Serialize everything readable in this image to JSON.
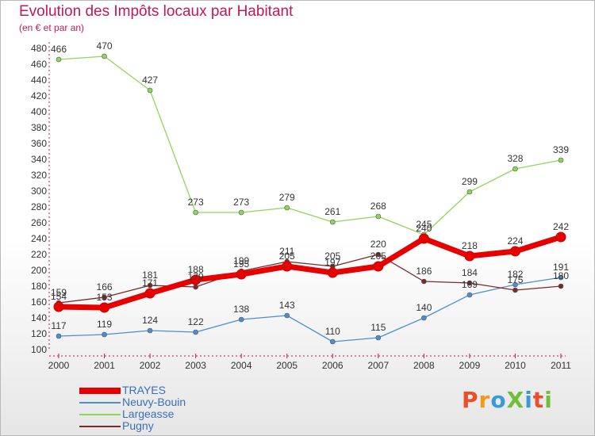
{
  "header": {
    "title": "Evolution des Impôts locaux par Habitant",
    "subtitle": "(en € et par an)"
  },
  "logo": {
    "text": "ProXiti",
    "letters": [
      {
        "ch": "P",
        "color": "#e8502a"
      },
      {
        "ch": "r",
        "color": "#f29a1d"
      },
      {
        "ch": "o",
        "color": "#3a9ad9"
      },
      {
        "ch": "X",
        "color": "#6fbf3b"
      },
      {
        "ch": "i",
        "color": "#3a9ad9"
      },
      {
        "ch": "t",
        "color": "#e8502a"
      },
      {
        "ch": "i",
        "color": "#6fbf3b"
      }
    ]
  },
  "chart_data": {
    "type": "line",
    "title": "Evolution des Impôts locaux par Habitant",
    "subtitle": "(en € et par an)",
    "categories": [
      "2000",
      "2001",
      "2002",
      "2003",
      "2004",
      "2005",
      "2006",
      "2007",
      "2008",
      "2009",
      "2010",
      "2011"
    ],
    "y_ticks": [
      100,
      120,
      140,
      160,
      180,
      200,
      220,
      240,
      260,
      280,
      300,
      320,
      340,
      360,
      380,
      400,
      420,
      440,
      460,
      480
    ],
    "ylim": [
      100,
      480
    ],
    "grid": false,
    "legend_position": "bottom-left",
    "series": [
      {
        "name": "TRAYES",
        "color": "#e60000",
        "values": [
          154,
          153,
          171,
          188,
          195,
          205,
          197,
          205,
          240,
          218,
          224,
          242
        ]
      },
      {
        "name": "Neuvy-Bouin",
        "color": "#4d8fcc",
        "values": [
          117,
          119,
          124,
          122,
          138,
          143,
          110,
          115,
          140,
          169,
          182,
          191
        ]
      },
      {
        "name": "Largeasse",
        "color": "#8ed65a",
        "values": [
          466,
          470,
          427,
          273,
          273,
          279,
          261,
          268,
          245,
          299,
          328,
          339
        ]
      },
      {
        "name": "Pugny",
        "color": "#7a2a2a",
        "values": [
          159,
          166,
          181,
          179,
          199,
          211,
          205,
          220,
          186,
          184,
          175,
          180
        ]
      }
    ]
  }
}
